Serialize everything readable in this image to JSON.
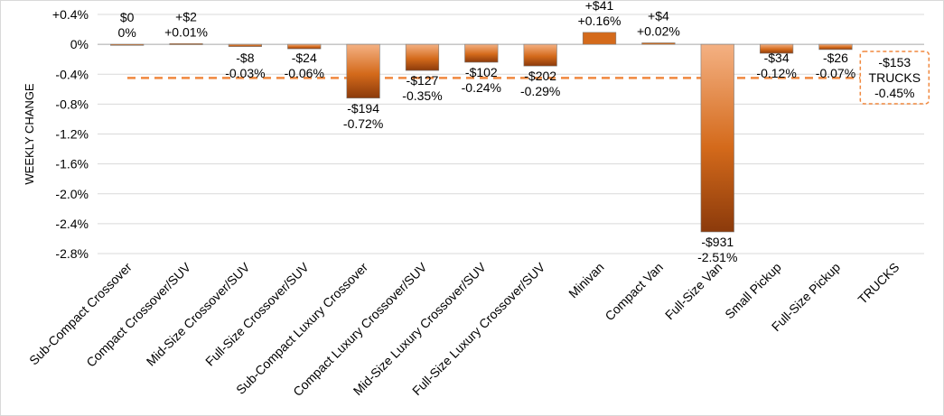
{
  "chart_data": {
    "type": "bar",
    "ylabel": "WEEKLY CHANGE",
    "xlabel": "",
    "ylim": [
      -2.8,
      0.4
    ],
    "y_ticks": [
      0.4,
      0.0,
      -0.4,
      -0.8,
      -1.2,
      -1.6,
      -2.0,
      -2.4,
      -2.8
    ],
    "y_tick_labels": [
      "+0.4%",
      "0%",
      "-0.4%",
      "-0.8%",
      "-1.2%",
      "-1.6%",
      "-2.0%",
      "-2.4%",
      "-2.8%"
    ],
    "grid": true,
    "categories": [
      "Sub-Compact Crossover",
      "Compact Crossover/SUV",
      "Mid-Size Crossover/SUV",
      "Full-Size Crossover/SUV",
      "Sub-Compact Luxury Crossover",
      "Compact Luxury Crossover/SUV",
      "Mid-Size Luxury Crossover/SUV",
      "Full-Size Luxury Crossover/SUV",
      "Minivan",
      "Compact Van",
      "Full-Size Van",
      "Small Pickup",
      "Full-Size Pickup",
      "TRUCKS"
    ],
    "values": [
      0.0,
      0.01,
      -0.03,
      -0.06,
      -0.72,
      -0.35,
      -0.24,
      -0.29,
      0.16,
      0.02,
      -2.51,
      -0.12,
      -0.07,
      -0.45
    ],
    "dollar_labels": [
      "$0",
      "+$2",
      "-$8",
      "-$24",
      "-$194",
      "-$127",
      "-$102",
      "-$202",
      "+$41",
      "+$4",
      "-$931",
      "-$34",
      "-$26",
      "-$153"
    ],
    "percent_labels": [
      "0%",
      "+0.01%",
      "-0.03%",
      "-0.06%",
      "-0.72%",
      "-0.35%",
      "-0.24%",
      "-0.29%",
      "+0.16%",
      "+0.02%",
      "-2.51%",
      "-0.12%",
      "-0.07%",
      "-0.45%"
    ],
    "reference_line": {
      "value": -0.45,
      "label_lines": [
        "-$153",
        "TRUCKS",
        "-0.45%"
      ]
    },
    "colors": {
      "bar_light": "#F4B183",
      "bar_dark": "#8B3A0B",
      "bar_mid": "#D46A1B",
      "reference": "#F0883E",
      "grid": "#d9d9d9",
      "axis": "#a6a6a6"
    }
  }
}
